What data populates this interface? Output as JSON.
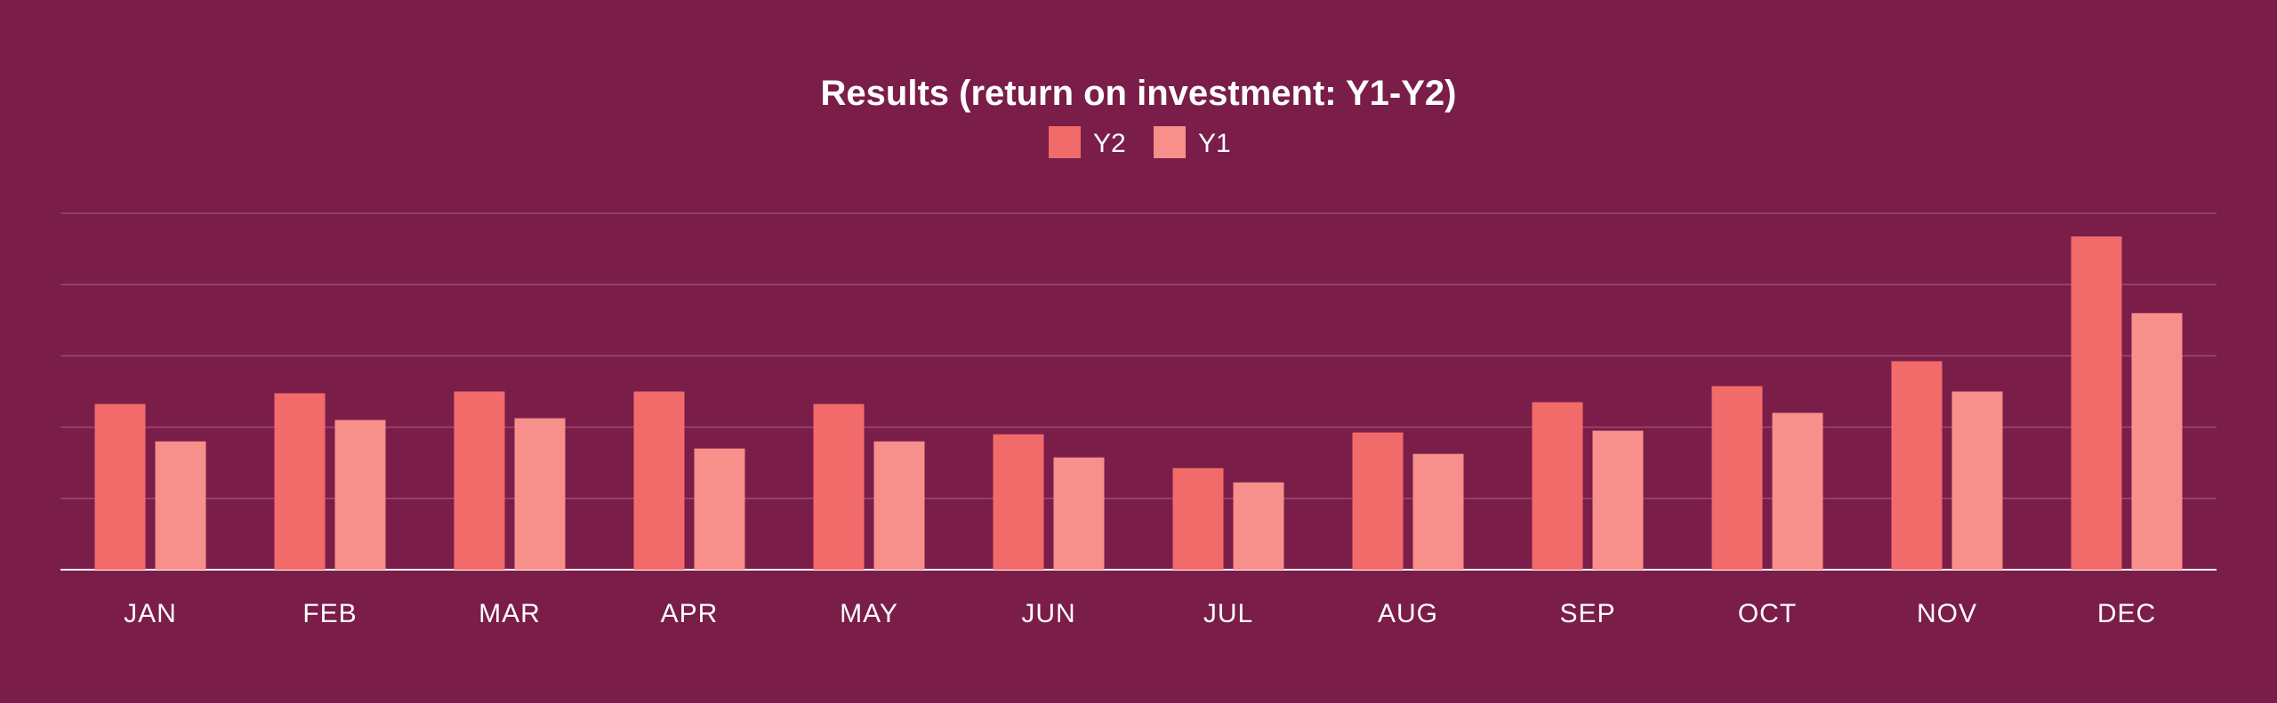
{
  "chart_data": {
    "type": "bar",
    "title": "Results (return on investment: Y1-Y2)",
    "xlabel": "",
    "ylabel": "",
    "categories": [
      "JAN",
      "FEB",
      "MAR",
      "APR",
      "MAY",
      "JUN",
      "JUL",
      "AUG",
      "SEP",
      "OCT",
      "NOV",
      "DEC"
    ],
    "series": [
      {
        "name": "Y2",
        "color": "#f26b6b",
        "values": [
          46.5,
          49.5,
          50,
          50,
          46.5,
          38,
          28.5,
          38.5,
          47,
          51.5,
          58.5,
          93.5
        ]
      },
      {
        "name": "Y1",
        "color": "#f78f8a",
        "values": [
          36,
          42,
          42.5,
          34,
          36,
          31.5,
          24.5,
          32.5,
          39,
          44,
          50,
          72
        ]
      }
    ],
    "ylim": [
      0,
      100
    ],
    "yticks": [
      0,
      20,
      40,
      60,
      80,
      100
    ],
    "ytick_labels_visible": false,
    "grid": true,
    "legend_position": "top-center",
    "background_color": "#7a1d48",
    "grid_color": "#a04a75",
    "baseline_color": "#ffffff",
    "text_color": "#ffffff"
  }
}
